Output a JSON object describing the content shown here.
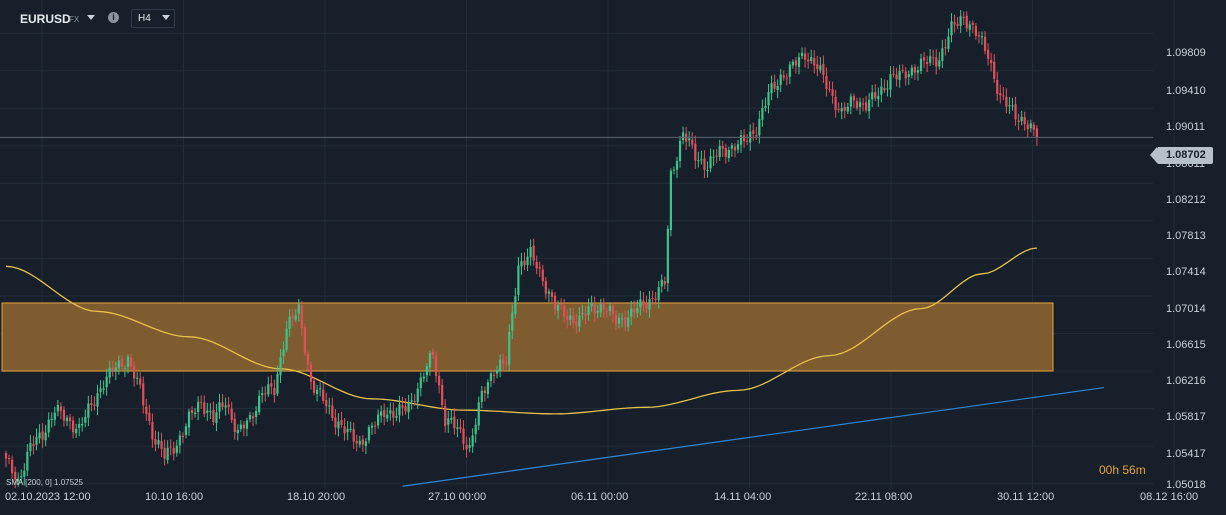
{
  "toolbar": {
    "symbol": "EURUSD",
    "symbol_tag": "FX",
    "info_icon": "i",
    "timeframe": "H4"
  },
  "price_axis_labels": [
    "1.09809",
    "1.09410",
    "1.09011",
    "1.08611",
    "1.08212",
    "1.07813",
    "1.07414",
    "1.07014",
    "1.06615",
    "1.06216",
    "1.05817",
    "1.05417",
    "1.05018"
  ],
  "time_axis_labels": [
    "02.10.2023  12:00",
    "10.10  16:00",
    "18.10  20:00",
    "27.10  00:00",
    "06.11  00:00",
    "14.11  04:00",
    "22.11  08:00",
    "30.11  12:00",
    "08.12  16:00"
  ],
  "current_price": "1.08702",
  "countdown": {
    "hours": "00h",
    "minutes": "56m"
  },
  "sma_legend": "SMA [200, 0] 1.07525",
  "colors": {
    "background": "#17202a",
    "up_candle": "#3cc28a",
    "down_candle": "#e0505a",
    "sma_line": "#e6c14a",
    "zone_fill": "#8a6330",
    "zone_border": "#e8a33a",
    "trendline": "#2f86d6",
    "countdown": "#e6a23c"
  },
  "chart_data": {
    "type": "candlestick",
    "symbol": "EURUSD",
    "timeframe": "H4",
    "ylim": [
      1.0495,
      1.101
    ],
    "x_ticks": [
      "02.10.2023 12:00",
      "10.10 16:00",
      "18.10 20:00",
      "27.10 00:00",
      "06.11 00:00",
      "14.11 04:00",
      "22.11 08:00",
      "30.11 12:00",
      "08.12 16:00"
    ],
    "last_price": 1.08702,
    "close_anchors": [
      [
        0,
        1.0525
      ],
      [
        4,
        1.0505
      ],
      [
        8,
        1.054
      ],
      [
        12,
        1.0555
      ],
      [
        16,
        1.058
      ],
      [
        20,
        1.057
      ],
      [
        24,
        1.056
      ],
      [
        28,
        1.0585
      ],
      [
        32,
        1.061
      ],
      [
        36,
        1.0625
      ],
      [
        40,
        1.0635
      ],
      [
        44,
        1.06
      ],
      [
        48,
        1.0555
      ],
      [
        52,
        1.053
      ],
      [
        56,
        1.0545
      ],
      [
        60,
        1.057
      ],
      [
        64,
        1.059
      ],
      [
        68,
        1.057
      ],
      [
        72,
        1.059
      ],
      [
        76,
        1.0555
      ],
      [
        80,
        1.057
      ],
      [
        84,
        1.06
      ],
      [
        88,
        1.06
      ],
      [
        92,
        1.067
      ],
      [
        96,
        1.0685
      ],
      [
        100,
        1.061
      ],
      [
        104,
        1.059
      ],
      [
        108,
        1.057
      ],
      [
        112,
        1.0555
      ],
      [
        116,
        1.0545
      ],
      [
        120,
        1.056
      ],
      [
        124,
        1.058
      ],
      [
        128,
        1.0575
      ],
      [
        132,
        1.0585
      ],
      [
        136,
        1.061
      ],
      [
        140,
        1.064
      ],
      [
        144,
        1.057
      ],
      [
        148,
        1.056
      ],
      [
        152,
        1.054
      ],
      [
        156,
        1.0595
      ],
      [
        160,
        1.0625
      ],
      [
        164,
        1.063
      ],
      [
        168,
        1.0735
      ],
      [
        172,
        1.0745
      ],
      [
        176,
        1.072
      ],
      [
        180,
        1.069
      ],
      [
        184,
        1.068
      ],
      [
        188,
        1.0675
      ],
      [
        192,
        1.069
      ],
      [
        196,
        1.069
      ],
      [
        200,
        1.0675
      ],
      [
        204,
        1.068
      ],
      [
        208,
        1.069
      ],
      [
        212,
        1.07
      ],
      [
        216,
        1.0715
      ],
      [
        218,
        1.083
      ],
      [
        222,
        1.0875
      ],
      [
        226,
        1.085
      ],
      [
        230,
        1.084
      ],
      [
        234,
        1.0855
      ],
      [
        238,
        1.086
      ],
      [
        242,
        1.0865
      ],
      [
        246,
        1.088
      ],
      [
        250,
        1.0915
      ],
      [
        254,
        1.0935
      ],
      [
        258,
        1.0945
      ],
      [
        262,
        1.096
      ],
      [
        266,
        1.0945
      ],
      [
        270,
        1.092
      ],
      [
        274,
        1.0895
      ],
      [
        278,
        1.091
      ],
      [
        282,
        1.0905
      ],
      [
        286,
        1.0915
      ],
      [
        290,
        1.0935
      ],
      [
        294,
        1.0935
      ],
      [
        298,
        1.0945
      ],
      [
        302,
        1.095
      ],
      [
        306,
        1.0955
      ],
      [
        310,
        1.0985
      ],
      [
        314,
        1.1
      ],
      [
        318,
        1.098
      ],
      [
        322,
        1.096
      ],
      [
        326,
        1.091
      ],
      [
        330,
        1.09
      ],
      [
        334,
        1.0885
      ],
      [
        338,
        1.087
      ]
    ],
    "sma": {
      "name": "SMA [200, 0]",
      "last_value": 1.07525,
      "points": [
        [
          0,
          1.0733
        ],
        [
          30,
          1.0685
        ],
        [
          60,
          1.0658
        ],
        [
          90,
          1.0624
        ],
        [
          120,
          1.0592
        ],
        [
          150,
          1.058
        ],
        [
          180,
          1.0576
        ],
        [
          210,
          1.0583
        ],
        [
          240,
          1.0601
        ],
        [
          270,
          1.0638
        ],
        [
          300,
          1.0688
        ],
        [
          320,
          1.0725
        ],
        [
          338,
          1.07525
        ]
      ]
    },
    "resistance_zone": {
      "low": 1.06216,
      "high": 1.0694
    },
    "trendline": {
      "points": [
        [
          130,
          1.0499
        ],
        [
          360,
          1.0604
        ]
      ]
    }
  }
}
